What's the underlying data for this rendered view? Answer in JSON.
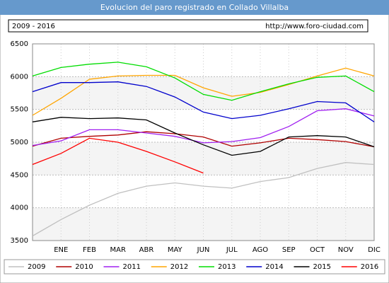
{
  "chart_data": {
    "type": "line",
    "title": "Evolucion del paro registrado en Collado Villalba",
    "subtitle": "2009 - 2016",
    "source": "http://www.foro-ciudad.com",
    "categories": [
      null,
      "ENE",
      "FEB",
      "MAR",
      "ABR",
      "MAY",
      "JUN",
      "JUL",
      "AGO",
      "SEP",
      "OCT",
      "NOV",
      "DIC"
    ],
    "series": [
      {
        "name": "2009",
        "color": "#c0c0c0",
        "values": [
          3570,
          3820,
          4040,
          4220,
          4330,
          4380,
          4330,
          4300,
          4400,
          4460,
          4600,
          4690,
          4660
        ]
      },
      {
        "name": "2010",
        "color": "#b00000",
        "values": [
          4940,
          5060,
          5090,
          5110,
          5160,
          5130,
          5080,
          4940,
          4990,
          5060,
          5040,
          5010,
          4930
        ]
      },
      {
        "name": "2011",
        "color": "#a020f0",
        "values": [
          4950,
          5020,
          5190,
          5190,
          5140,
          5090,
          4990,
          5010,
          5070,
          5240,
          5480,
          5510,
          5400
        ]
      },
      {
        "name": "2012",
        "color": "#ffa500",
        "values": [
          5410,
          5670,
          5960,
          6010,
          6020,
          6020,
          5830,
          5700,
          5760,
          5880,
          6010,
          6130,
          6010
        ]
      },
      {
        "name": "2013",
        "color": "#00dd00",
        "values": [
          6010,
          6140,
          6190,
          6220,
          6150,
          5980,
          5730,
          5640,
          5770,
          5890,
          5990,
          6010,
          5770
        ]
      },
      {
        "name": "2014",
        "color": "#0000cc",
        "values": [
          5770,
          5910,
          5910,
          5920,
          5850,
          5690,
          5460,
          5360,
          5410,
          5510,
          5620,
          5600,
          5310
        ]
      },
      {
        "name": "2015",
        "color": "#000000",
        "values": [
          5310,
          5380,
          5360,
          5370,
          5340,
          5140,
          4960,
          4800,
          4860,
          5080,
          5100,
          5080,
          4930
        ]
      },
      {
        "name": "2016",
        "color": "#ff0000",
        "values": [
          4660,
          4830,
          5060,
          5000,
          4860,
          4700,
          4530,
          null,
          null,
          null,
          null,
          null,
          null
        ]
      }
    ],
    "ylim": [
      3500,
      6500
    ],
    "yticks": [
      3500,
      4000,
      4500,
      5000,
      5500,
      6000,
      6500
    ],
    "grid": true
  }
}
